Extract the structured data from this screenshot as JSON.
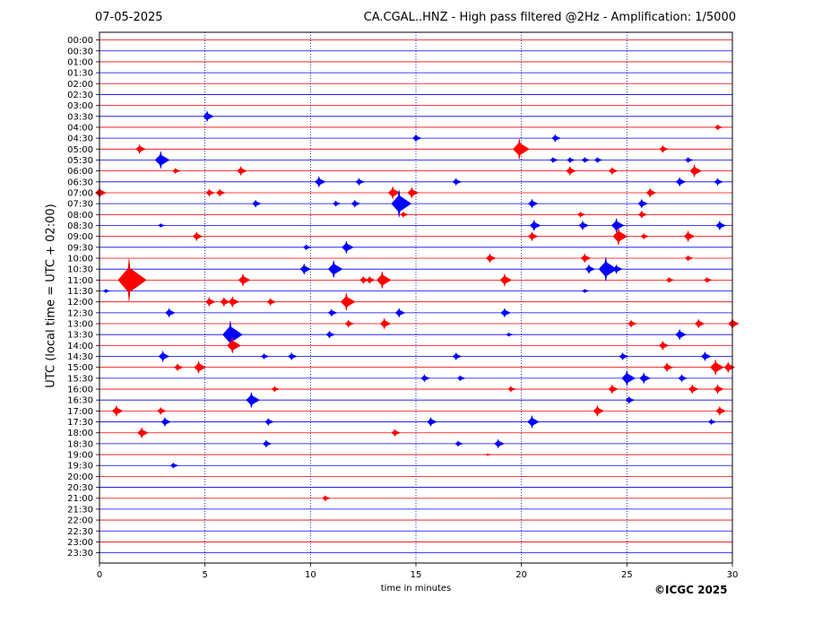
{
  "header": {
    "date": "07-05-2025",
    "title": "CA.CGAL..HNZ - High pass filtered @2Hz - Amplification: 1/5000"
  },
  "footer": {
    "copyright": "©ICGC 2025"
  },
  "colors": {
    "red": "#ff0000",
    "blue": "#0000ff",
    "grid": "#00008b",
    "frame": "#000000"
  },
  "chart_data": {
    "type": "line",
    "title": "CA.CGAL..HNZ - High pass filtered @2Hz - Amplification: 1/5000",
    "xlabel": "time in minutes",
    "ylabel": "UTC (local time = UTC + 02:00)",
    "xlim": [
      0,
      30
    ],
    "xticks": [
      0,
      5,
      10,
      15,
      20,
      25,
      30
    ],
    "yticks": [
      "00:00",
      "00:30",
      "01:00",
      "01:30",
      "02:00",
      "02:30",
      "03:00",
      "03:30",
      "04:00",
      "04:30",
      "05:00",
      "05:30",
      "06:00",
      "06:30",
      "07:00",
      "07:30",
      "08:00",
      "08:30",
      "09:00",
      "09:30",
      "10:00",
      "10:30",
      "11:00",
      "11:30",
      "12:00",
      "12:30",
      "13:00",
      "13:30",
      "14:00",
      "14:30",
      "15:00",
      "15:30",
      "16:00",
      "16:30",
      "17:00",
      "17:30",
      "18:00",
      "18:30",
      "19:00",
      "19:30",
      "20:00",
      "20:30",
      "21:00",
      "21:30",
      "22:00",
      "22:30",
      "23:00",
      "23:30"
    ],
    "trace_colors": [
      "red",
      "blue"
    ],
    "grid": "vertical dotted at x = 5, 10, 15, 20, 25",
    "events": [
      {
        "row": 7,
        "t": 5.1,
        "a": 0.6
      },
      {
        "row": 9,
        "t": 15.0,
        "a": 0.4
      },
      {
        "row": 9,
        "t": 21.6,
        "a": 0.4
      },
      {
        "row": 8,
        "t": 29.3,
        "a": 0.3
      },
      {
        "row": 10,
        "t": 1.9,
        "a": 0.5
      },
      {
        "row": 10,
        "t": 19.9,
        "a": 1.2
      },
      {
        "row": 10,
        "t": 26.7,
        "a": 0.4
      },
      {
        "row": 11,
        "t": 2.9,
        "a": 1.0
      },
      {
        "row": 11,
        "t": 21.5,
        "a": 0.3
      },
      {
        "row": 11,
        "t": 22.3,
        "a": 0.3
      },
      {
        "row": 11,
        "t": 23.0,
        "a": 0.3
      },
      {
        "row": 11,
        "t": 23.6,
        "a": 0.3
      },
      {
        "row": 11,
        "t": 27.9,
        "a": 0.3
      },
      {
        "row": 12,
        "t": 3.6,
        "a": 0.3
      },
      {
        "row": 12,
        "t": 6.7,
        "a": 0.5
      },
      {
        "row": 12,
        "t": 22.3,
        "a": 0.5
      },
      {
        "row": 12,
        "t": 24.3,
        "a": 0.4
      },
      {
        "row": 12,
        "t": 28.2,
        "a": 0.7
      },
      {
        "row": 13,
        "t": 10.4,
        "a": 0.6
      },
      {
        "row": 13,
        "t": 12.3,
        "a": 0.4
      },
      {
        "row": 13,
        "t": 16.9,
        "a": 0.4
      },
      {
        "row": 13,
        "t": 27.5,
        "a": 0.5
      },
      {
        "row": 13,
        "t": 29.3,
        "a": 0.4
      },
      {
        "row": 14,
        "t": 0.0,
        "a": 0.6
      },
      {
        "row": 14,
        "t": 5.2,
        "a": 0.4
      },
      {
        "row": 14,
        "t": 5.7,
        "a": 0.4
      },
      {
        "row": 14,
        "t": 13.9,
        "a": 0.7
      },
      {
        "row": 14,
        "t": 14.8,
        "a": 0.6
      },
      {
        "row": 14,
        "t": 26.1,
        "a": 0.5
      },
      {
        "row": 15,
        "t": 7.4,
        "a": 0.4
      },
      {
        "row": 15,
        "t": 11.2,
        "a": 0.3
      },
      {
        "row": 15,
        "t": 12.1,
        "a": 0.4
      },
      {
        "row": 15,
        "t": 14.2,
        "a": 1.6
      },
      {
        "row": 15,
        "t": 20.5,
        "a": 0.5
      },
      {
        "row": 15,
        "t": 25.7,
        "a": 0.5
      },
      {
        "row": 16,
        "t": 14.4,
        "a": 0.3
      },
      {
        "row": 16,
        "t": 22.8,
        "a": 0.3
      },
      {
        "row": 16,
        "t": 25.7,
        "a": 0.4
      },
      {
        "row": 17,
        "t": 2.9,
        "a": 0.2
      },
      {
        "row": 17,
        "t": 20.6,
        "a": 0.6
      },
      {
        "row": 17,
        "t": 22.9,
        "a": 0.5
      },
      {
        "row": 17,
        "t": 24.5,
        "a": 0.8
      },
      {
        "row": 17,
        "t": 29.4,
        "a": 0.5
      },
      {
        "row": 18,
        "t": 4.6,
        "a": 0.5
      },
      {
        "row": 18,
        "t": 20.5,
        "a": 0.5
      },
      {
        "row": 18,
        "t": 24.6,
        "a": 1.0
      },
      {
        "row": 18,
        "t": 25.8,
        "a": 0.3
      },
      {
        "row": 18,
        "t": 27.9,
        "a": 0.6
      },
      {
        "row": 19,
        "t": 9.8,
        "a": 0.3
      },
      {
        "row": 19,
        "t": 11.7,
        "a": 0.7
      },
      {
        "row": 20,
        "t": 18.5,
        "a": 0.5
      },
      {
        "row": 20,
        "t": 23.0,
        "a": 0.5
      },
      {
        "row": 20,
        "t": 27.9,
        "a": 0.3
      },
      {
        "row": 21,
        "t": 9.7,
        "a": 0.6
      },
      {
        "row": 21,
        "t": 11.1,
        "a": 1.0
      },
      {
        "row": 21,
        "t": 23.2,
        "a": 0.5
      },
      {
        "row": 21,
        "t": 24.0,
        "a": 1.4
      },
      {
        "row": 21,
        "t": 24.5,
        "a": 0.5
      },
      {
        "row": 22,
        "t": 1.4,
        "a": 2.5
      },
      {
        "row": 22,
        "t": 6.8,
        "a": 0.7
      },
      {
        "row": 22,
        "t": 12.5,
        "a": 0.4
      },
      {
        "row": 22,
        "t": 12.8,
        "a": 0.4
      },
      {
        "row": 22,
        "t": 13.4,
        "a": 1.0
      },
      {
        "row": 22,
        "t": 19.2,
        "a": 0.7
      },
      {
        "row": 22,
        "t": 27.0,
        "a": 0.3
      },
      {
        "row": 22,
        "t": 28.8,
        "a": 0.3
      },
      {
        "row": 23,
        "t": 0.3,
        "a": 0.2
      },
      {
        "row": 23,
        "t": 23.0,
        "a": 0.2
      },
      {
        "row": 24,
        "t": 5.2,
        "a": 0.5
      },
      {
        "row": 24,
        "t": 5.9,
        "a": 0.5
      },
      {
        "row": 24,
        "t": 6.3,
        "a": 0.6
      },
      {
        "row": 24,
        "t": 8.1,
        "a": 0.4
      },
      {
        "row": 24,
        "t": 11.7,
        "a": 1.0
      },
      {
        "row": 25,
        "t": 3.3,
        "a": 0.5
      },
      {
        "row": 25,
        "t": 11.0,
        "a": 0.4
      },
      {
        "row": 25,
        "t": 14.2,
        "a": 0.5
      },
      {
        "row": 25,
        "t": 19.2,
        "a": 0.5
      },
      {
        "row": 26,
        "t": 11.8,
        "a": 0.4
      },
      {
        "row": 26,
        "t": 13.5,
        "a": 0.6
      },
      {
        "row": 26,
        "t": 25.2,
        "a": 0.4
      },
      {
        "row": 26,
        "t": 28.4,
        "a": 0.5
      },
      {
        "row": 26,
        "t": 30.0,
        "a": 0.6
      },
      {
        "row": 27,
        "t": 6.2,
        "a": 1.6
      },
      {
        "row": 27,
        "t": 10.9,
        "a": 0.4
      },
      {
        "row": 27,
        "t": 19.4,
        "a": 0.2
      },
      {
        "row": 27,
        "t": 27.5,
        "a": 0.6
      },
      {
        "row": 28,
        "t": 6.3,
        "a": 0.9
      },
      {
        "row": 28,
        "t": 26.7,
        "a": 0.5
      },
      {
        "row": 29,
        "t": 3.0,
        "a": 0.6
      },
      {
        "row": 29,
        "t": 7.8,
        "a": 0.3
      },
      {
        "row": 29,
        "t": 9.1,
        "a": 0.4
      },
      {
        "row": 29,
        "t": 16.9,
        "a": 0.4
      },
      {
        "row": 29,
        "t": 24.8,
        "a": 0.4
      },
      {
        "row": 29,
        "t": 28.7,
        "a": 0.5
      },
      {
        "row": 30,
        "t": 3.7,
        "a": 0.4
      },
      {
        "row": 30,
        "t": 4.7,
        "a": 0.7
      },
      {
        "row": 30,
        "t": 26.9,
        "a": 0.5
      },
      {
        "row": 30,
        "t": 29.2,
        "a": 0.9
      },
      {
        "row": 30,
        "t": 29.8,
        "a": 0.6
      },
      {
        "row": 31,
        "t": 15.4,
        "a": 0.4
      },
      {
        "row": 31,
        "t": 17.1,
        "a": 0.3
      },
      {
        "row": 31,
        "t": 25.0,
        "a": 0.9
      },
      {
        "row": 31,
        "t": 25.8,
        "a": 0.6
      },
      {
        "row": 31,
        "t": 27.6,
        "a": 0.4
      },
      {
        "row": 32,
        "t": 8.3,
        "a": 0.3
      },
      {
        "row": 32,
        "t": 19.5,
        "a": 0.3
      },
      {
        "row": 32,
        "t": 24.3,
        "a": 0.5
      },
      {
        "row": 32,
        "t": 28.1,
        "a": 0.5
      },
      {
        "row": 32,
        "t": 29.3,
        "a": 0.5
      },
      {
        "row": 33,
        "t": 7.2,
        "a": 0.9
      },
      {
        "row": 33,
        "t": 25.1,
        "a": 0.4
      },
      {
        "row": 34,
        "t": 0.8,
        "a": 0.6
      },
      {
        "row": 34,
        "t": 2.9,
        "a": 0.4
      },
      {
        "row": 34,
        "t": 23.6,
        "a": 0.6
      },
      {
        "row": 34,
        "t": 29.4,
        "a": 0.5
      },
      {
        "row": 35,
        "t": 3.1,
        "a": 0.5
      },
      {
        "row": 35,
        "t": 8.0,
        "a": 0.4
      },
      {
        "row": 35,
        "t": 15.7,
        "a": 0.5
      },
      {
        "row": 35,
        "t": 20.5,
        "a": 0.7
      },
      {
        "row": 35,
        "t": 29.0,
        "a": 0.3
      },
      {
        "row": 36,
        "t": 2.0,
        "a": 0.6
      },
      {
        "row": 36,
        "t": 14.0,
        "a": 0.4
      },
      {
        "row": 37,
        "t": 7.9,
        "a": 0.4
      },
      {
        "row": 37,
        "t": 17.0,
        "a": 0.3
      },
      {
        "row": 37,
        "t": 18.9,
        "a": 0.5
      },
      {
        "row": 38,
        "t": 18.4,
        "a": 0.1
      },
      {
        "row": 39,
        "t": 3.5,
        "a": 0.3
      },
      {
        "row": 42,
        "t": 10.7,
        "a": 0.3
      }
    ]
  }
}
